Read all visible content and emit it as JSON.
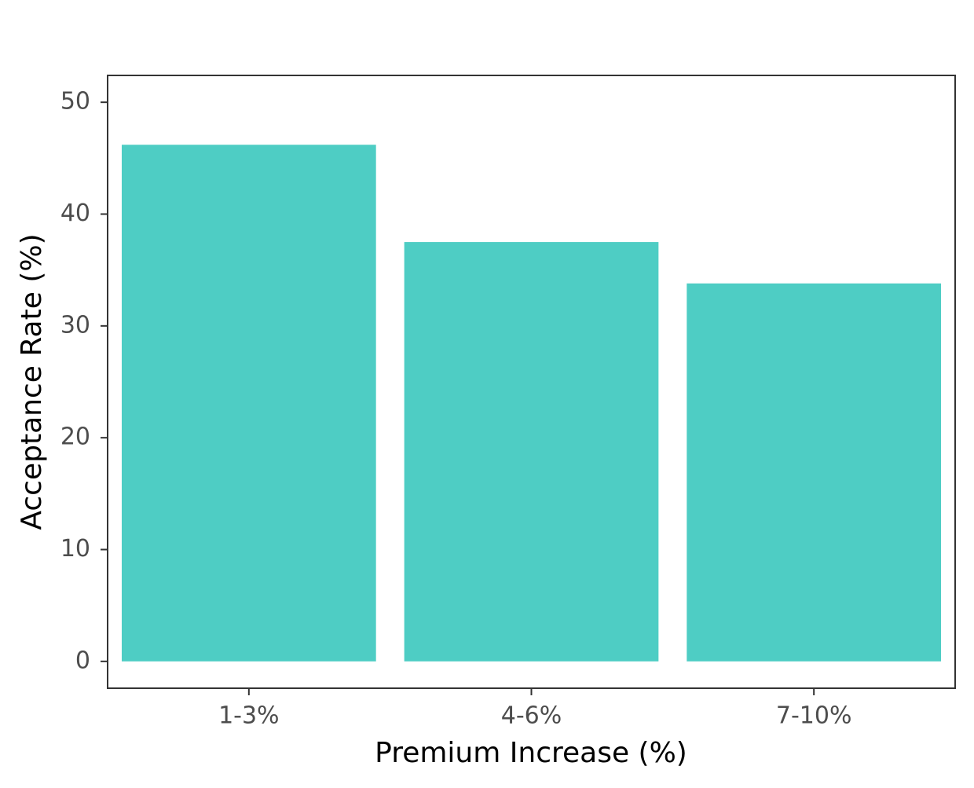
{
  "chart_data": {
    "type": "bar",
    "x_label": "Premium Increase (%)",
    "y_label": "Acceptance Rate (%)",
    "categories": [
      "1-3%",
      "4-6%",
      "7-10%"
    ],
    "values": [
      46.2,
      37.5,
      33.8
    ],
    "color": "#4ecdc4",
    "ylim": [
      -2.4,
      52.4
    ],
    "yticks": [
      0,
      10,
      20,
      30,
      40,
      50
    ],
    "grid": false
  }
}
